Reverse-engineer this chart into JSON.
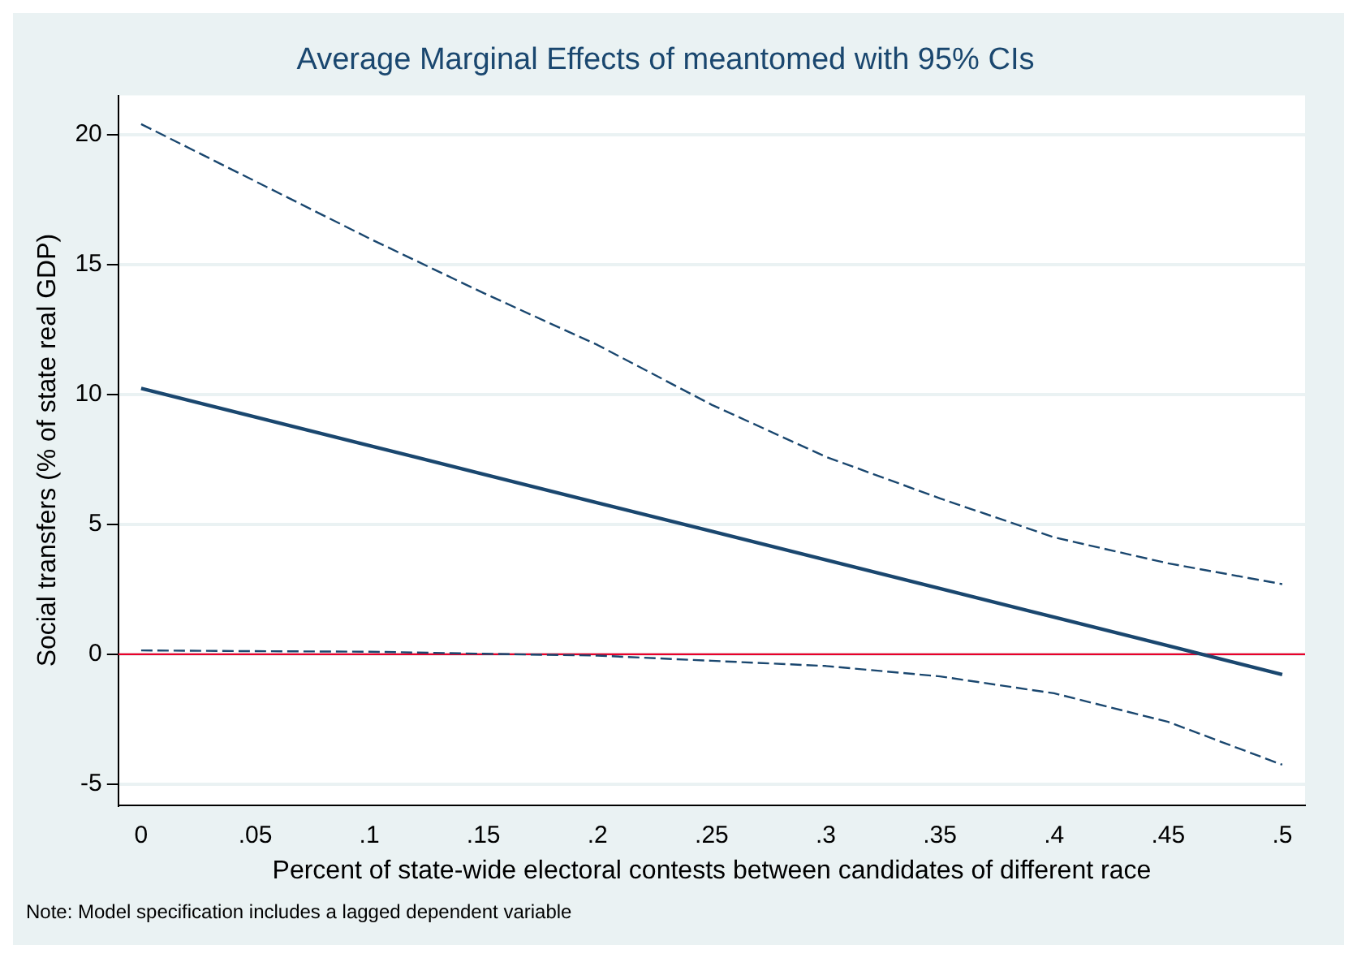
{
  "chart_data": {
    "type": "line",
    "title": "Average Marginal Effects of meantomed with 95% CIs",
    "xlabel": "Percent of state-wide electoral contests between candidates of different race",
    "ylabel": "Social transfers (% of state real GDP)",
    "annotations": [
      "Note: Model specification includes a lagged dependent variable"
    ],
    "x": [
      0,
      0.05,
      0.1,
      0.15,
      0.2,
      0.25,
      0.3,
      0.35,
      0.4,
      0.45,
      0.5
    ],
    "series": [
      {
        "color": "#1a476f",
        "line_style": "solid",
        "values": [
          10.23,
          9.13,
          8.03,
          6.93,
          5.83,
          4.73,
          3.63,
          2.53,
          1.43,
          0.33,
          -0.78
        ]
      },
      {
        "color": "#1a476f",
        "line_style": "dashed",
        "values": [
          20.4,
          18.2,
          16.0,
          13.9,
          11.9,
          9.6,
          7.6,
          6.0,
          4.5,
          3.5,
          2.7
        ]
      },
      {
        "color": "#1a476f",
        "line_style": "dashed",
        "values": [
          0.15,
          0.12,
          0.1,
          0.02,
          -0.05,
          -0.25,
          -0.45,
          -0.85,
          -1.5,
          -2.6,
          -4.25
        ]
      }
    ],
    "ref_lines": [
      {
        "axis": "y",
        "value": 0,
        "color": "#e8002a"
      }
    ],
    "xlim": [
      -0.01,
      0.51
    ],
    "xticks": [
      {
        "value": 0,
        "label": "0"
      },
      {
        "value": 0.05,
        "label": ".05"
      },
      {
        "value": 0.1,
        "label": ".1"
      },
      {
        "value": 0.15,
        "label": ".15"
      },
      {
        "value": 0.2,
        "label": ".2"
      },
      {
        "value": 0.25,
        "label": ".25"
      },
      {
        "value": 0.3,
        "label": ".3"
      },
      {
        "value": 0.35,
        "label": ".35"
      },
      {
        "value": 0.4,
        "label": ".4"
      },
      {
        "value": 0.45,
        "label": ".45"
      },
      {
        "value": 0.5,
        "label": ".5"
      }
    ],
    "ylim": [
      -5.8,
      21.5
    ],
    "yticks": [
      -5,
      0,
      5,
      10,
      15,
      20
    ],
    "grid": "y",
    "legend": false,
    "marker": "none"
  }
}
